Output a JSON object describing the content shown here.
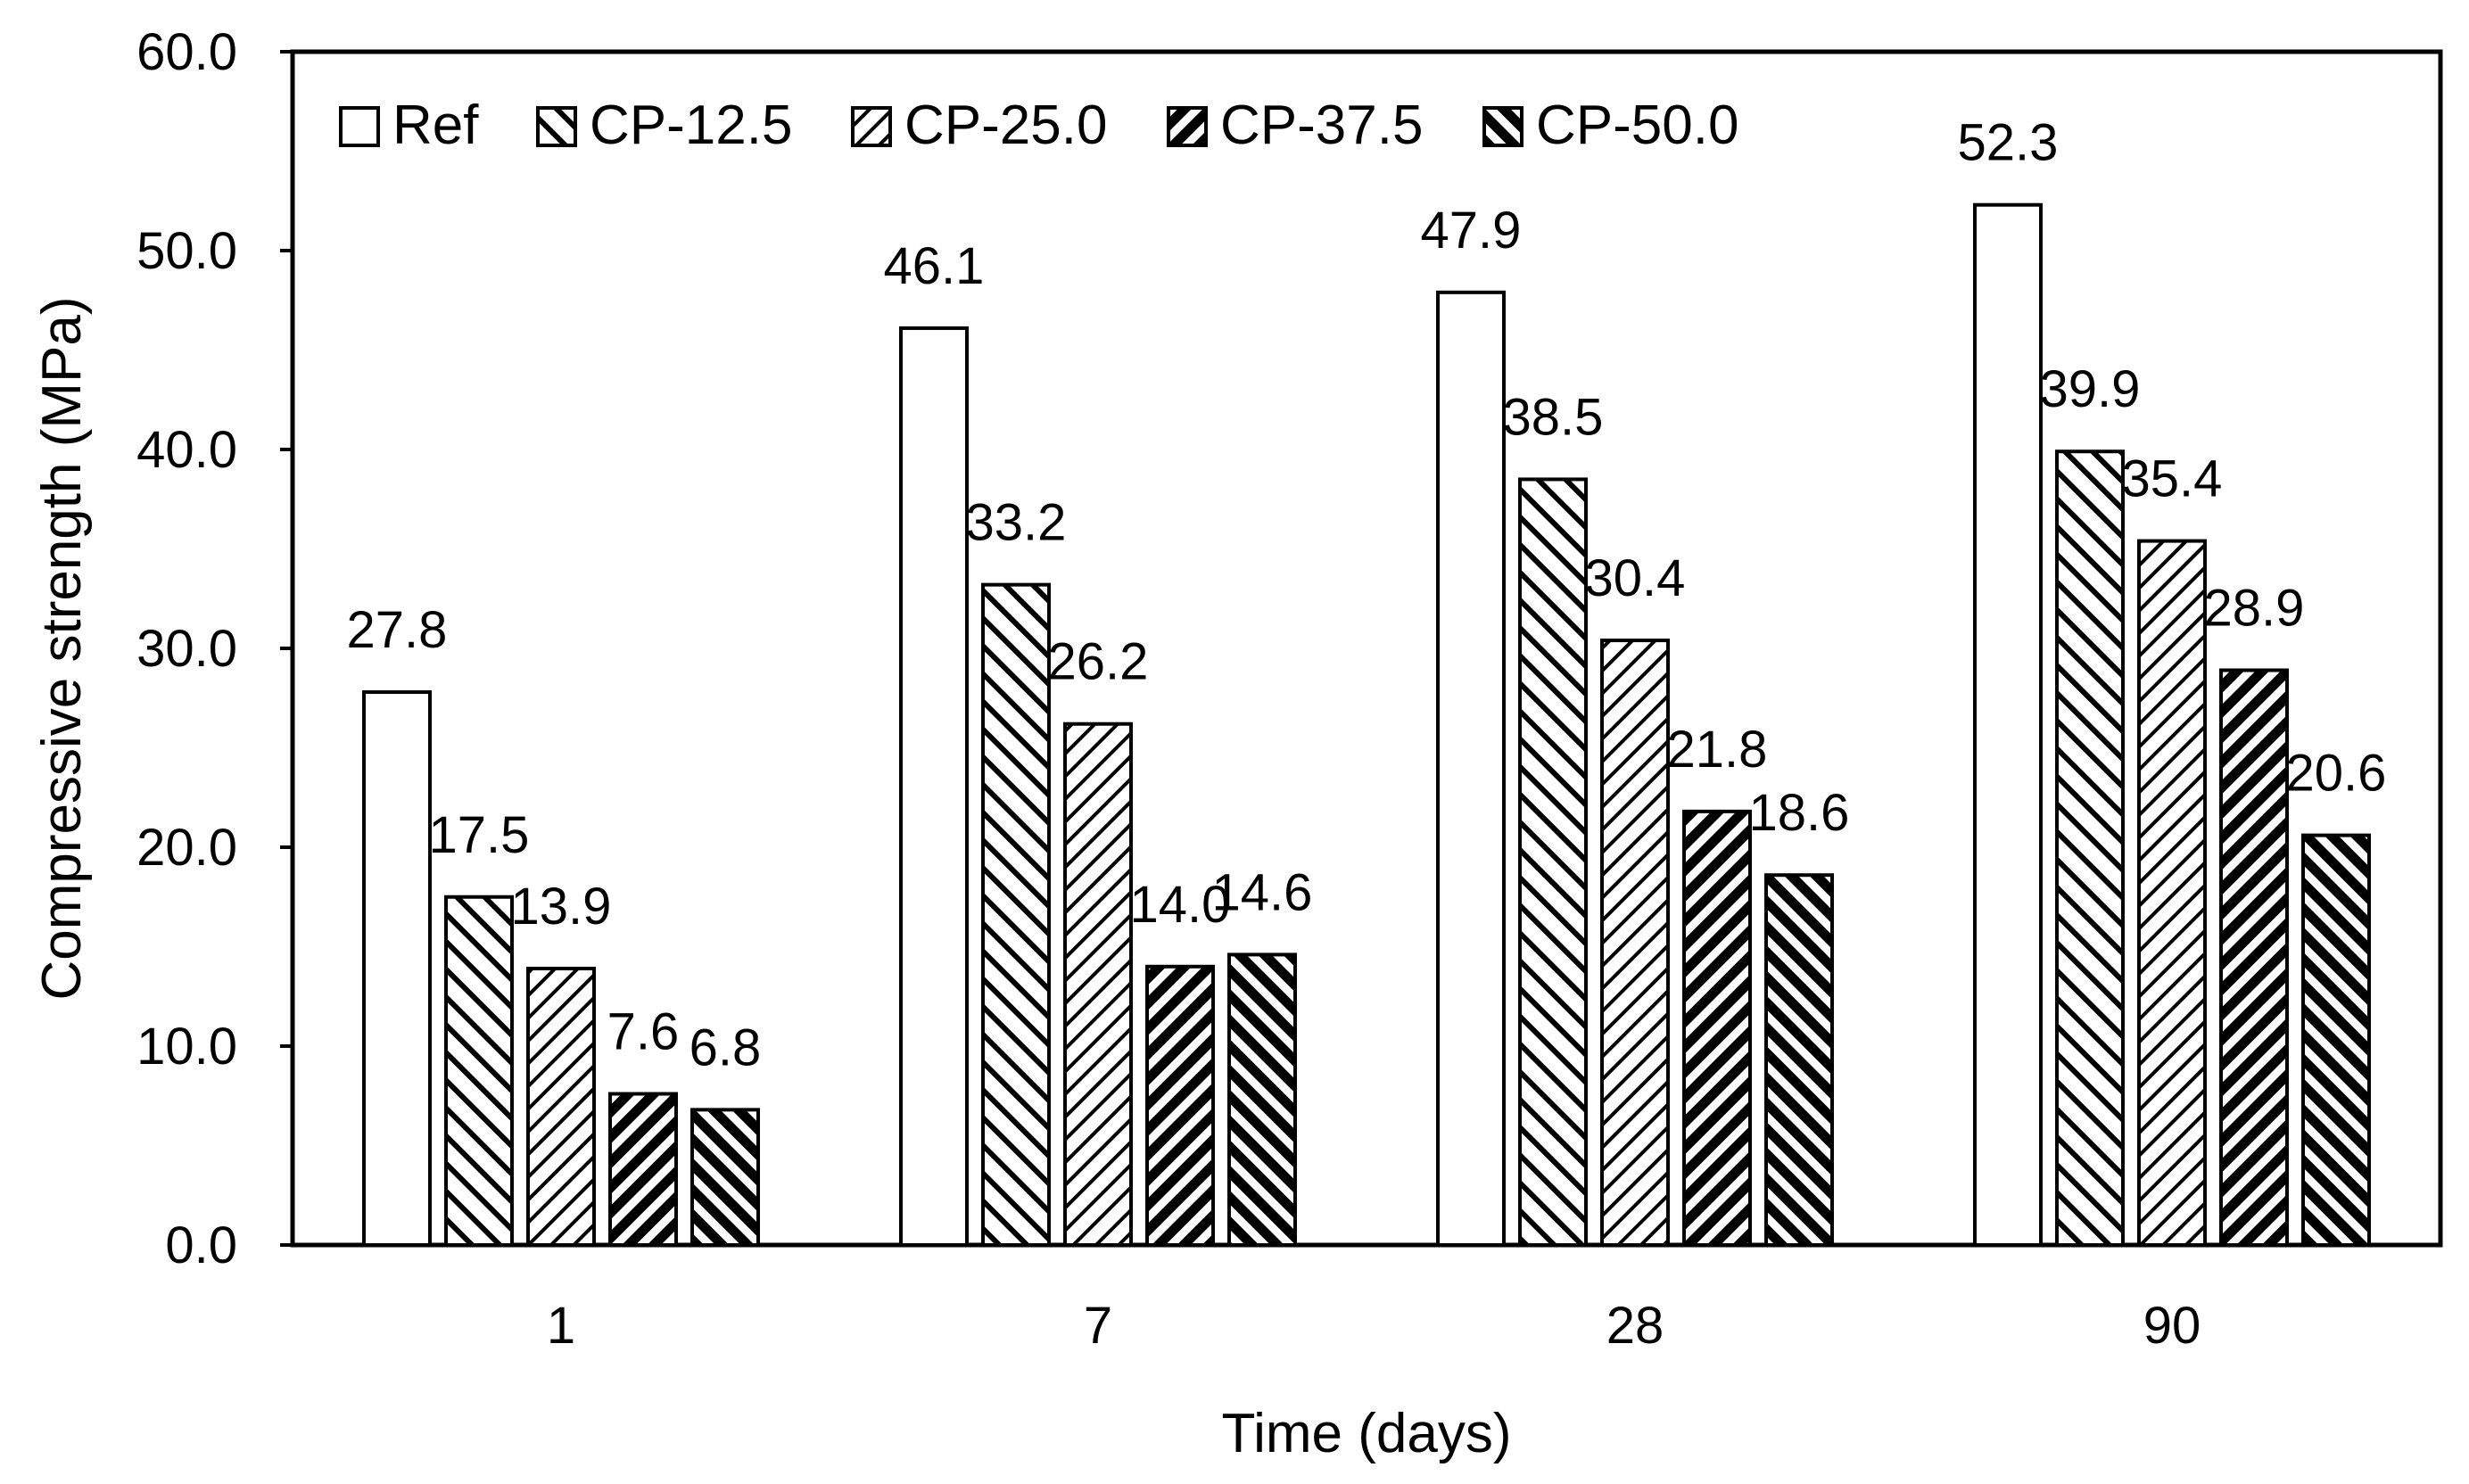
{
  "chart_data": {
    "type": "bar",
    "title": "",
    "xlabel": "Time (days)",
    "ylabel": "Compressive strength (MPa)",
    "ylim": [
      0,
      60
    ],
    "yticks": [
      0,
      10,
      20,
      30,
      40,
      50,
      60
    ],
    "ytick_labels": [
      "0.0",
      "10.0",
      "20.0",
      "30.0",
      "40.0",
      "50.0",
      "60.0"
    ],
    "categories": [
      "1",
      "7",
      "28",
      "90"
    ],
    "legend_position": "top-left inside plot",
    "series": [
      {
        "name": "Ref",
        "pattern": "solid-white",
        "values": [
          27.8,
          46.1,
          47.9,
          52.3
        ],
        "labels": [
          "27.8",
          "46.1",
          "47.9",
          "52.3"
        ]
      },
      {
        "name": "CP-12.5",
        "pattern": "back-diagonal-medium",
        "values": [
          17.5,
          33.2,
          38.5,
          39.9
        ],
        "labels": [
          "17.5",
          "33.2",
          "38.5",
          "39.9"
        ]
      },
      {
        "name": "CP-25.0",
        "pattern": "forward-diagonal-light",
        "values": [
          13.9,
          26.2,
          30.4,
          35.4
        ],
        "labels": [
          "13.9",
          "26.2",
          "30.4",
          "35.4"
        ]
      },
      {
        "name": "CP-37.5",
        "pattern": "forward-diagonal-heavy",
        "values": [
          7.6,
          14.0,
          21.8,
          28.9
        ],
        "labels": [
          "7.6",
          "14.0",
          "21.8",
          "28.9"
        ]
      },
      {
        "name": "CP-50.0",
        "pattern": "back-diagonal-heavy",
        "values": [
          6.8,
          14.6,
          18.6,
          20.6
        ],
        "labels": [
          "6.8",
          "14.6",
          "18.6",
          "20.6"
        ]
      }
    ],
    "colors": {
      "bar_outline": "#000000",
      "hatch": "#000000",
      "background": "#ffffff"
    }
  }
}
